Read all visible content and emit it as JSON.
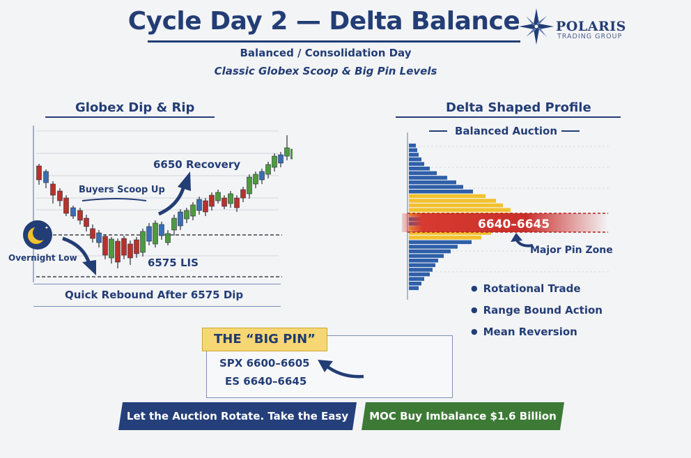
{
  "header": {
    "title": "Cycle Day 2 — Delta Balance",
    "subtitle": "Balanced / Consolidation Day",
    "subtitle2": "Classic Globex Scoop & Big Pin Levels"
  },
  "logo": {
    "name": "POLARIS",
    "tagline": "TRADING GROUP",
    "icon": "compass-star-icon"
  },
  "left_panel": {
    "title": "Globex Dip & Rip",
    "recovery_label": "6650 Recovery",
    "scoop_label": "Buyers Scoop Up",
    "overnight_label": "Overnight Low",
    "overnight_icon": "moon-icon",
    "lis_label": "6575 LIS",
    "footer": "Quick Rebound After 6575 Dip"
  },
  "right_panel": {
    "title": "Delta Shaped Profile",
    "subtitle": "Balanced Auction",
    "pin_zone_range": "6640–6645",
    "pin_zone_label": "Major Pin Zone",
    "bullets": [
      "Rotational Trade",
      "Range Bound Action",
      "Mean Reversion"
    ]
  },
  "big_pin": {
    "title": "THE “BIG PIN”",
    "spx": "SPX 6600–6605",
    "es": "ES 6640–6645"
  },
  "banners": {
    "left": "Let the Auction Rotate. Take the Easy Trades.",
    "right": "MOC Buy Imbalance $1.6 Billion"
  },
  "colors": {
    "navy": "#233d75",
    "up_candle": "#4e9a3f",
    "down_candle": "#b8322c",
    "doji_candle": "#3a6db5",
    "profile_blue": "#2f5fa8",
    "profile_yellow": "#f2c12e",
    "pin_red": "#c9302c",
    "banner_green": "#3d7a36"
  }
}
